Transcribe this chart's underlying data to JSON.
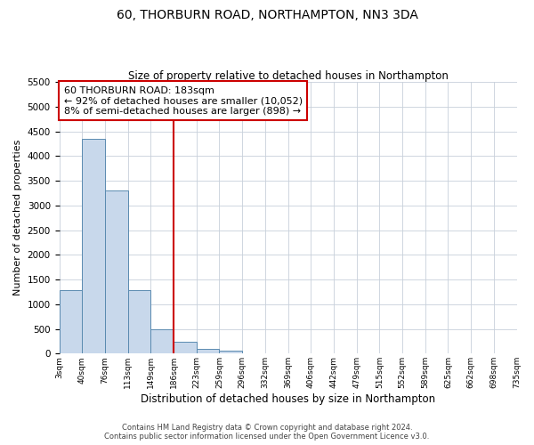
{
  "title": "60, THORBURN ROAD, NORTHAMPTON, NN3 3DA",
  "subtitle": "Size of property relative to detached houses in Northampton",
  "xlabel": "Distribution of detached houses by size in Northampton",
  "ylabel": "Number of detached properties",
  "property_label": "60 THORBURN ROAD: 183sqm",
  "annotation_line1": "← 92% of detached houses are smaller (10,052)",
  "annotation_line2": "8% of semi-detached houses are larger (898) →",
  "footer_line1": "Contains HM Land Registry data © Crown copyright and database right 2024.",
  "footer_line2": "Contains public sector information licensed under the Open Government Licence v3.0.",
  "ylim": [
    0,
    5500
  ],
  "bar_color": "#c8d8eb",
  "bar_edge_color": "#5a8ab0",
  "vline_color": "#cc0000",
  "annotation_box_edge_color": "#cc0000",
  "grid_color": "#c8d0da",
  "bin_labels": [
    "3sqm",
    "40sqm",
    "76sqm",
    "113sqm",
    "149sqm",
    "186sqm",
    "223sqm",
    "259sqm",
    "296sqm",
    "332sqm",
    "369sqm",
    "406sqm",
    "442sqm",
    "479sqm",
    "515sqm",
    "552sqm",
    "589sqm",
    "625sqm",
    "662sqm",
    "698sqm",
    "735sqm"
  ],
  "bar_heights": [
    1280,
    4350,
    3300,
    1290,
    490,
    240,
    90,
    65,
    0,
    0,
    0,
    0,
    0,
    0,
    0,
    0,
    0,
    0,
    0,
    0
  ],
  "vline_x": 5.0
}
